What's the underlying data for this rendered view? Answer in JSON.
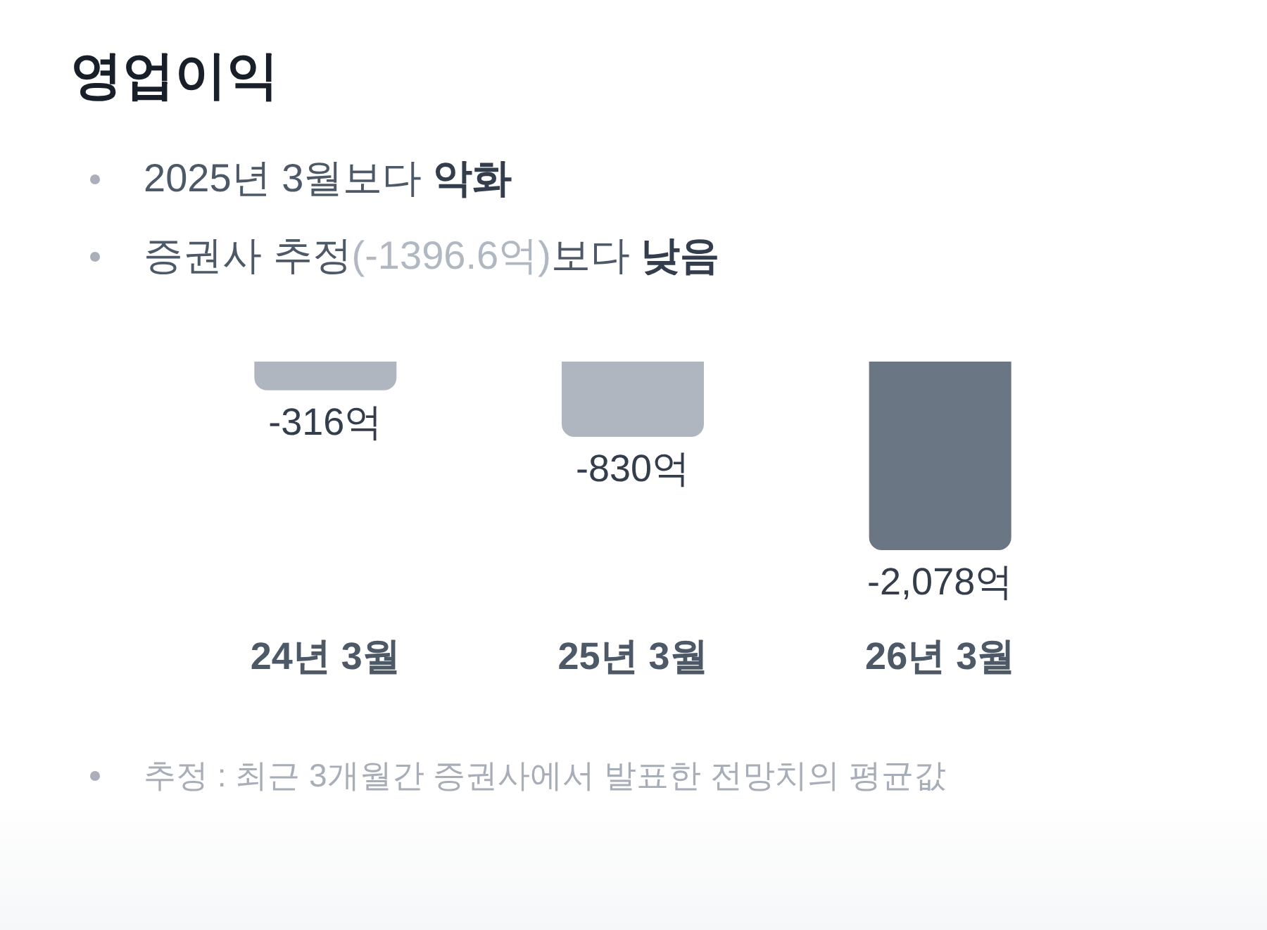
{
  "chart_data": {
    "type": "bar",
    "title": "영업이익",
    "annotations": [
      "2025년 3월보다 악화",
      "증권사 추정(-1396.6억)보다 낮음",
      "추정 : 최근 3개월간 증권사에서 발표한 전망치의 평균값"
    ],
    "categories": [
      "24년 3월",
      "25년 3월",
      "26년 3월"
    ],
    "values": [
      -316,
      -830,
      -2078
    ],
    "value_labels": [
      "-316억",
      "-830억",
      "-2,078억"
    ],
    "colors": [
      "#afb6bf",
      "#afb6bf",
      "#6b7684"
    ]
  }
}
